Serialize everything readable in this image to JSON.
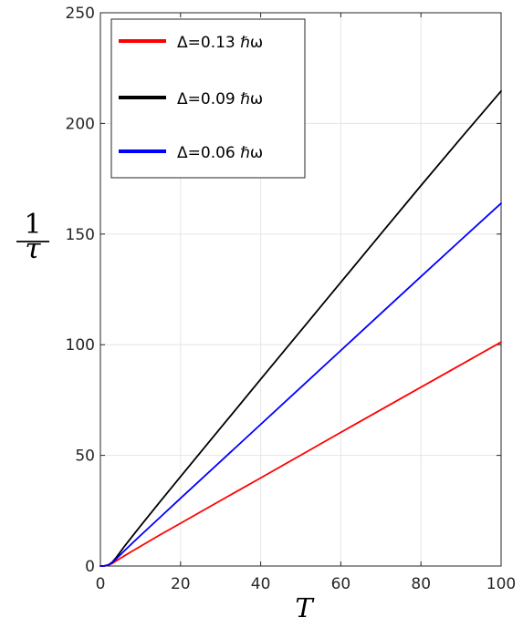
{
  "chart_data": {
    "type": "line",
    "title": "",
    "xlabel": "T",
    "ylabel": {
      "numerator": "1",
      "denominator": "τ"
    },
    "xlim": [
      0,
      100
    ],
    "ylim": [
      0,
      250
    ],
    "xticks": [
      0,
      20,
      40,
      60,
      80,
      100
    ],
    "yticks": [
      0,
      50,
      100,
      150,
      200,
      250
    ],
    "xtick_labels": [
      "0",
      "20",
      "40",
      "60",
      "80",
      "100"
    ],
    "ytick_labels": [
      "0",
      "50",
      "100",
      "150",
      "200",
      "250"
    ],
    "grid": true,
    "legend_position": "top-left",
    "series": [
      {
        "name": "Δ=0.13 ℏω",
        "color": "#ff0000",
        "x": [
          0,
          1,
          2,
          3,
          4,
          5,
          6,
          8,
          10,
          15,
          20,
          30,
          40,
          50,
          60,
          70,
          80,
          90,
          100
        ],
        "y": [
          0,
          0.05,
          0.4,
          1.2,
          2.4,
          3.5,
          4.6,
          6.8,
          8.9,
          14.2,
          19.3,
          29.6,
          39.8,
          50.1,
          60.4,
          70.6,
          80.8,
          91.0,
          101.2
        ]
      },
      {
        "name": "Δ=0.09 ℏω",
        "color": "#000000",
        "x": [
          0,
          1,
          2,
          3,
          4,
          5,
          6,
          8,
          10,
          15,
          20,
          30,
          40,
          50,
          60,
          70,
          80,
          90,
          100
        ],
        "y": [
          0,
          0.05,
          0.5,
          1.8,
          4.0,
          6.4,
          8.9,
          13.5,
          18.1,
          29.3,
          40.4,
          62.4,
          84.4,
          106.3,
          128.2,
          150.1,
          171.9,
          193.4,
          214.6
        ]
      },
      {
        "name": "Δ=0.06 ℏω",
        "color": "#0000ff",
        "x": [
          0,
          1,
          2,
          3,
          4,
          5,
          6,
          8,
          10,
          15,
          20,
          30,
          40,
          50,
          60,
          70,
          80,
          90,
          100
        ],
        "y": [
          0,
          0.05,
          0.5,
          1.6,
          3.3,
          5.1,
          6.9,
          10.4,
          13.8,
          22.2,
          30.6,
          47.3,
          64.0,
          80.7,
          97.4,
          114.1,
          130.8,
          147.4,
          163.9
        ]
      }
    ]
  }
}
